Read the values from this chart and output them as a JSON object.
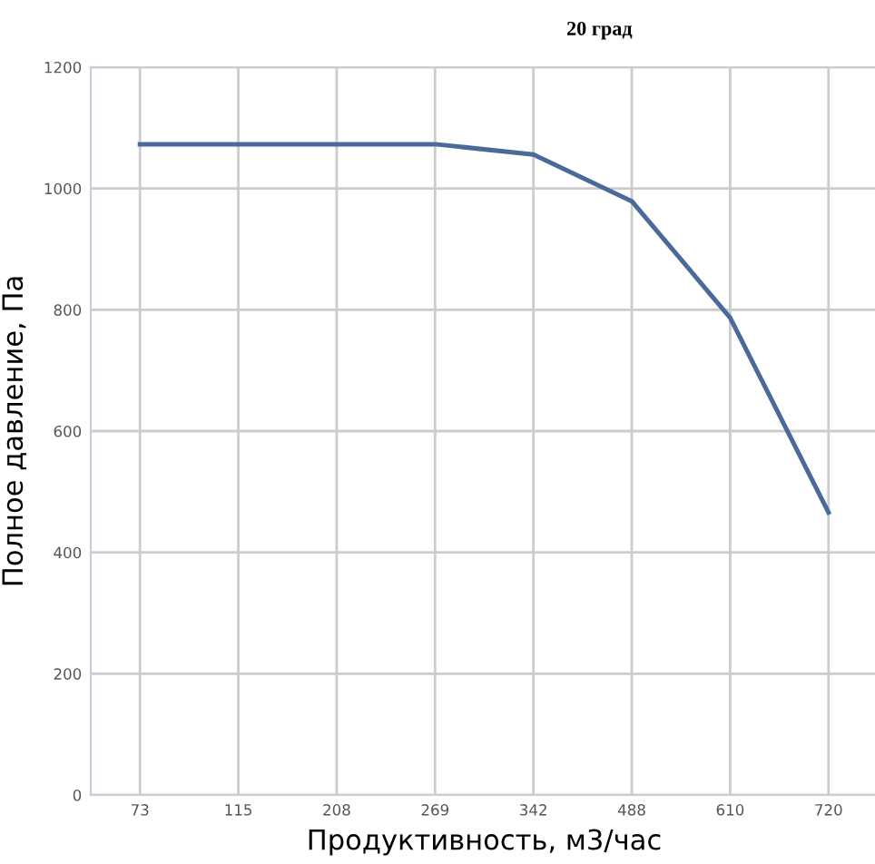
{
  "chart_data": {
    "type": "line",
    "title": "20 град",
    "xlabel": "Продуктивность, м3/час",
    "ylabel": "Полное давление, Па",
    "categories": [
      "73",
      "115",
      "208",
      "269",
      "342",
      "488",
      "610",
      "720"
    ],
    "series": [
      {
        "color": "#4a6a9c",
        "values": [
          1073,
          1073,
          1073,
          1073,
          1056,
          979,
          787,
          466
        ]
      }
    ],
    "ylim": [
      0,
      1200
    ],
    "yticks": [
      0,
      200,
      400,
      600,
      800,
      1000,
      1200
    ],
    "grid": true,
    "marker": "none",
    "line_style": "solid"
  }
}
